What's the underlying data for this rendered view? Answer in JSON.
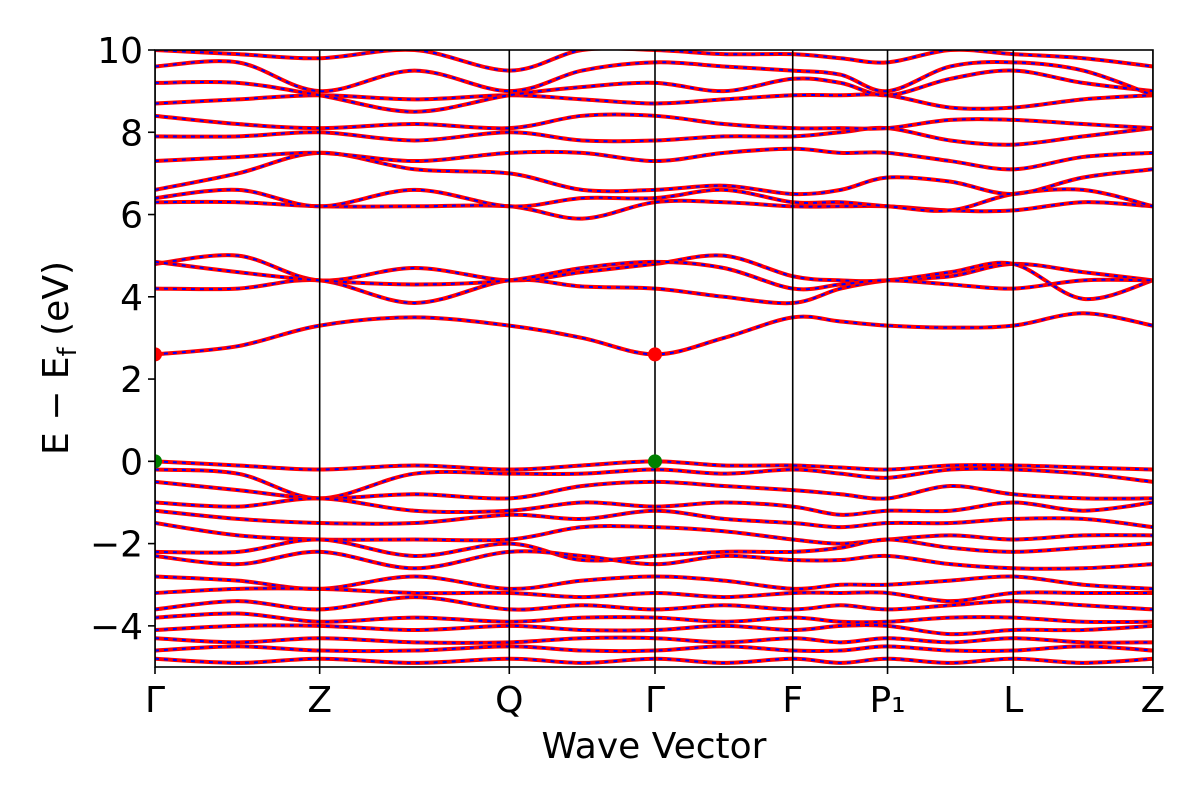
{
  "chart_data": {
    "type": "line",
    "xlabel": "Wave Vector",
    "ylabel": {
      "main": "E − E",
      "sub": "f",
      "unit": " (eV)"
    },
    "xlim": [
      0,
      1
    ],
    "ylim": [
      -5,
      10
    ],
    "yticks": [
      {
        "value": -4,
        "label": "−4"
      },
      {
        "value": -2,
        "label": "−2"
      },
      0,
      2,
      4,
      6,
      8,
      10
    ],
    "xticks": [
      {
        "value": 0,
        "label": "Γ"
      },
      {
        "value": 0.165,
        "label": "Z"
      },
      {
        "value": 0.355,
        "label": "Q"
      },
      {
        "value": 0.501,
        "label": "Γ"
      },
      {
        "value": 0.639,
        "label": "F"
      },
      {
        "value": 0.734,
        "label": "P₁"
      },
      {
        "value": 0.86,
        "label": "L"
      },
      {
        "value": 1.0,
        "label": "Z"
      }
    ],
    "line_color": "#ff0000",
    "dash_color": "#0000ff",
    "x": [
      0,
      0.083,
      0.165,
      0.26,
      0.355,
      0.428,
      0.501,
      0.57,
      0.639,
      0.687,
      0.734,
      0.797,
      0.86,
      0.93,
      1.0
    ],
    "series": [
      {
        "values": [
          2.6,
          2.8,
          3.3,
          3.5,
          3.3,
          3.0,
          2.6,
          3.0,
          3.5,
          3.4,
          3.3,
          3.25,
          3.3,
          3.6,
          3.3
        ]
      },
      {
        "values": [
          4.2,
          4.2,
          4.4,
          3.85,
          4.4,
          4.25,
          4.2,
          4.0,
          3.85,
          4.2,
          4.4,
          4.5,
          4.8,
          4.6,
          4.4
        ]
      },
      {
        "values": [
          4.8,
          5.0,
          4.4,
          4.7,
          4.4,
          4.6,
          4.8,
          5.0,
          4.5,
          4.4,
          4.4,
          4.6,
          4.8,
          3.95,
          4.4
        ]
      },
      {
        "values": [
          4.85,
          4.6,
          4.4,
          4.3,
          4.4,
          4.7,
          4.85,
          4.7,
          4.2,
          4.3,
          4.4,
          4.3,
          4.2,
          4.4,
          4.4
        ]
      },
      {
        "values": [
          6.3,
          6.3,
          6.2,
          6.2,
          6.2,
          5.9,
          6.3,
          6.3,
          6.2,
          6.2,
          6.2,
          6.1,
          6.1,
          6.3,
          6.2
        ]
      },
      {
        "values": [
          6.4,
          6.6,
          6.2,
          6.6,
          6.2,
          6.4,
          6.4,
          6.6,
          6.3,
          6.3,
          6.2,
          6.1,
          6.5,
          6.6,
          6.2
        ]
      },
      {
        "values": [
          6.6,
          7.0,
          7.5,
          7.1,
          7.0,
          6.6,
          6.6,
          6.7,
          6.5,
          6.6,
          6.9,
          6.8,
          6.5,
          6.9,
          7.1
        ]
      },
      {
        "values": [
          7.3,
          7.4,
          7.5,
          7.3,
          7.5,
          7.5,
          7.3,
          7.5,
          7.6,
          7.5,
          7.5,
          7.3,
          7.1,
          7.4,
          7.5
        ]
      },
      {
        "values": [
          7.9,
          7.9,
          8.0,
          7.8,
          8.0,
          7.8,
          7.8,
          7.9,
          7.9,
          8.0,
          8.1,
          7.8,
          7.7,
          7.9,
          8.1
        ]
      },
      {
        "values": [
          8.4,
          8.2,
          8.1,
          8.2,
          8.1,
          8.4,
          8.4,
          8.2,
          8.1,
          8.1,
          8.1,
          8.3,
          8.3,
          8.2,
          8.1
        ]
      },
      {
        "values": [
          8.7,
          8.8,
          8.9,
          8.8,
          8.9,
          8.8,
          8.7,
          8.8,
          8.9,
          8.9,
          8.9,
          8.6,
          8.6,
          8.8,
          8.9
        ]
      },
      {
        "values": [
          9.2,
          9.2,
          8.9,
          8.5,
          8.9,
          9.1,
          9.2,
          9.0,
          9.3,
          9.2,
          8.9,
          9.3,
          9.5,
          9.2,
          9.0
        ]
      },
      {
        "values": [
          9.6,
          9.7,
          9.0,
          9.5,
          9.0,
          9.5,
          9.7,
          9.6,
          9.5,
          9.4,
          9.0,
          9.6,
          9.7,
          9.5,
          8.9
        ]
      },
      {
        "values": [
          10.0,
          9.9,
          9.8,
          10.0,
          9.5,
          10.0,
          10.0,
          9.9,
          9.9,
          9.8,
          9.7,
          10.0,
          9.9,
          9.8,
          9.6
        ]
      },
      {
        "values": [
          0,
          -0.1,
          -0.2,
          -0.1,
          -0.2,
          -0.1,
          0,
          -0.1,
          -0.1,
          -0.15,
          -0.2,
          -0.1,
          -0.1,
          -0.15,
          -0.2
        ]
      },
      {
        "values": [
          -0.2,
          -0.3,
          -0.9,
          -0.3,
          -0.3,
          -0.3,
          -0.2,
          -0.3,
          -0.2,
          -0.3,
          -0.4,
          -0.2,
          -0.2,
          -0.3,
          -0.5
        ]
      },
      {
        "values": [
          -0.5,
          -0.7,
          -0.9,
          -0.8,
          -0.9,
          -0.6,
          -0.5,
          -0.6,
          -0.7,
          -0.8,
          -0.9,
          -0.6,
          -0.8,
          -0.9,
          -0.9
        ]
      },
      {
        "values": [
          -1.0,
          -1.1,
          -0.9,
          -1.2,
          -1.2,
          -1.0,
          -1.1,
          -1.0,
          -1.1,
          -1.3,
          -1.2,
          -1.2,
          -1.0,
          -1.2,
          -1.0
        ]
      },
      {
        "values": [
          -1.2,
          -1.4,
          -1.5,
          -1.5,
          -1.3,
          -1.4,
          -1.2,
          -1.4,
          -1.5,
          -1.6,
          -1.5,
          -1.5,
          -1.4,
          -1.4,
          -1.6
        ]
      },
      {
        "values": [
          -1.5,
          -1.8,
          -1.9,
          -1.9,
          -1.9,
          -1.6,
          -1.6,
          -1.7,
          -1.9,
          -2.0,
          -1.9,
          -1.8,
          -1.9,
          -1.8,
          -1.8
        ]
      },
      {
        "values": [
          -2.2,
          -2.2,
          -1.9,
          -2.3,
          -2.0,
          -2.4,
          -2.3,
          -2.2,
          -2.2,
          -2.1,
          -1.9,
          -2.1,
          -2.2,
          -2.1,
          -2.0
        ]
      },
      {
        "values": [
          -2.3,
          -2.5,
          -2.2,
          -2.6,
          -2.2,
          -2.3,
          -2.5,
          -2.3,
          -2.4,
          -2.4,
          -2.3,
          -2.5,
          -2.6,
          -2.6,
          -2.5
        ]
      },
      {
        "values": [
          -2.8,
          -2.9,
          -3.1,
          -2.8,
          -3.1,
          -2.9,
          -2.8,
          -2.9,
          -3.1,
          -3.0,
          -3.0,
          -2.9,
          -2.8,
          -3.0,
          -3.1
        ]
      },
      {
        "values": [
          -3.2,
          -3.1,
          -3.1,
          -3.2,
          -3.2,
          -3.3,
          -3.2,
          -3.3,
          -3.2,
          -3.2,
          -3.2,
          -3.4,
          -3.2,
          -3.2,
          -3.2
        ]
      },
      {
        "values": [
          -3.6,
          -3.4,
          -3.6,
          -3.3,
          -3.6,
          -3.5,
          -3.6,
          -3.5,
          -3.6,
          -3.5,
          -3.6,
          -3.5,
          -3.4,
          -3.5,
          -3.6
        ]
      },
      {
        "values": [
          -3.8,
          -3.7,
          -3.9,
          -3.8,
          -3.9,
          -3.8,
          -3.8,
          -3.9,
          -3.8,
          -3.9,
          -3.9,
          -3.8,
          -3.8,
          -3.9,
          -3.9
        ]
      },
      {
        "values": [
          -4.1,
          -4.0,
          -4.0,
          -4.1,
          -4.0,
          -4.1,
          -4.1,
          -4.0,
          -4.1,
          -4.0,
          -4.0,
          -4.2,
          -4.1,
          -4.1,
          -4.0
        ]
      },
      {
        "values": [
          -4.3,
          -4.4,
          -4.3,
          -4.4,
          -4.4,
          -4.3,
          -4.3,
          -4.4,
          -4.3,
          -4.4,
          -4.3,
          -4.4,
          -4.3,
          -4.4,
          -4.4
        ]
      },
      {
        "values": [
          -4.6,
          -4.5,
          -4.6,
          -4.6,
          -4.5,
          -4.6,
          -4.6,
          -4.5,
          -4.6,
          -4.6,
          -4.5,
          -4.6,
          -4.6,
          -4.5,
          -4.6
        ]
      },
      {
        "values": [
          -4.8,
          -4.9,
          -4.8,
          -4.9,
          -4.8,
          -4.9,
          -4.8,
          -4.9,
          -4.8,
          -4.9,
          -4.8,
          -4.9,
          -4.8,
          -4.9,
          -4.8
        ]
      }
    ],
    "markers": [
      {
        "x": 0,
        "y": 2.6,
        "color": "#ff0000"
      },
      {
        "x": 0.501,
        "y": 2.6,
        "color": "#ff0000"
      },
      {
        "x": 0,
        "y": 0,
        "color": "#008000"
      },
      {
        "x": 0.501,
        "y": 0,
        "color": "#008000"
      }
    ]
  }
}
